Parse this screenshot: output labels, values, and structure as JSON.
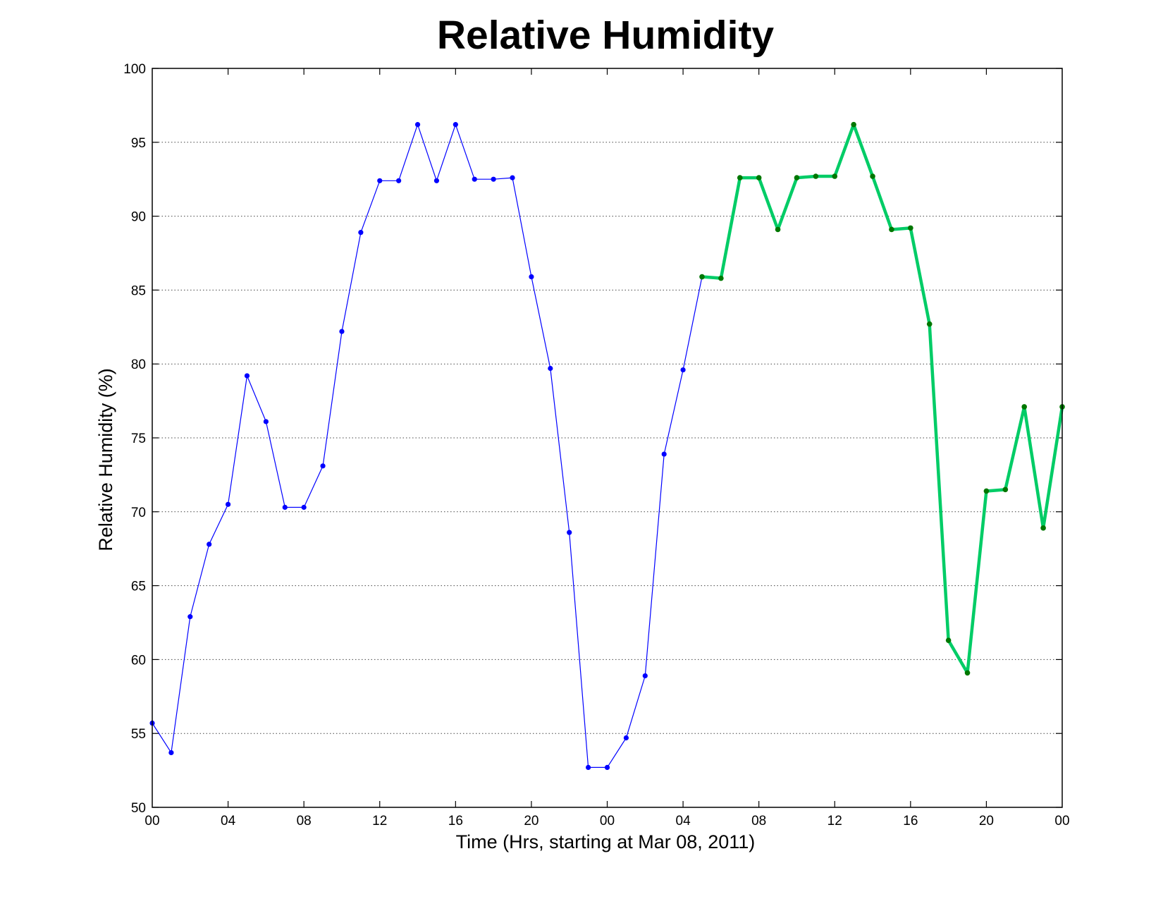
{
  "chart_data": {
    "type": "line",
    "title": "Relative Humidity",
    "xlabel": "Time (Hrs, starting at Mar 08, 2011)",
    "ylabel": "Relative Humidity (%)",
    "ylim": [
      50,
      100
    ],
    "xlim": [
      0,
      48
    ],
    "grid": true,
    "xtick_labels": [
      "00",
      "04",
      "08",
      "12",
      "16",
      "20",
      "00",
      "04",
      "08",
      "12",
      "16",
      "20",
      "00"
    ],
    "ytick_labels": [
      "50",
      "55",
      "60",
      "65",
      "70",
      "75",
      "80",
      "85",
      "90",
      "95",
      "100"
    ],
    "series": [
      {
        "color": "#0000ff",
        "marker_color": "#0000ff",
        "line_style": "thin",
        "x": [
          0,
          1,
          2,
          3,
          4,
          5,
          6,
          7,
          8,
          9,
          10,
          11,
          12,
          13,
          14,
          15,
          16,
          17,
          18,
          19,
          20,
          21,
          22,
          23,
          24,
          25,
          26,
          27,
          28,
          29
        ],
        "y": [
          55.7,
          53.7,
          62.9,
          67.8,
          70.5,
          79.2,
          76.1,
          70.3,
          70.3,
          73.1,
          82.2,
          88.9,
          92.4,
          92.4,
          96.2,
          92.4,
          96.2,
          92.5,
          92.5,
          92.6,
          85.9,
          79.7,
          68.6,
          52.7,
          52.7,
          54.7,
          58.9,
          73.9,
          79.6,
          85.9
        ]
      },
      {
        "color": "#00cc66",
        "marker_color": "#007700",
        "line_style": "thick",
        "x": [
          29,
          30,
          31,
          32,
          33,
          34,
          35,
          36,
          37,
          38,
          39,
          40,
          41,
          42,
          43,
          44,
          45,
          46,
          47,
          48
        ],
        "y": [
          85.9,
          85.8,
          92.6,
          92.6,
          89.1,
          92.6,
          92.7,
          92.7,
          96.2,
          92.7,
          89.1,
          89.2,
          82.7,
          61.3,
          59.1,
          71.4,
          71.5,
          77.1,
          68.9,
          77.1
        ]
      }
    ]
  }
}
